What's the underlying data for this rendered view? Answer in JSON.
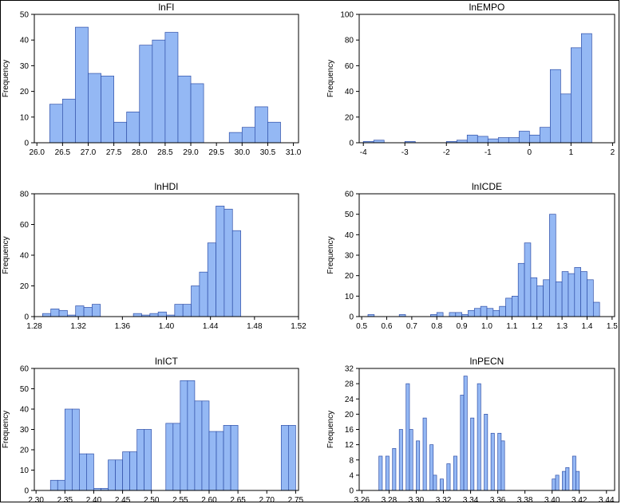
{
  "chart_data": [
    {
      "type": "bar",
      "title": "lnFI",
      "xlabel": "",
      "ylabel": "Frequency",
      "xlim": [
        25.95,
        31.1
      ],
      "ylim": [
        0,
        50
      ],
      "xticks": [
        26.0,
        26.5,
        27.0,
        27.5,
        28.0,
        28.5,
        29.0,
        29.5,
        30.0,
        30.5,
        31.0
      ],
      "xtick_labels": [
        "26.0",
        "26.5",
        "27.0",
        "27.5",
        "28.0",
        "28.5",
        "29.0",
        "29.5",
        "30.0",
        "30.5",
        "31.0"
      ],
      "yticks": [
        0,
        10,
        20,
        30,
        40,
        50
      ],
      "ytick_labels": [
        "0",
        "10",
        "20",
        "30",
        "40",
        "50"
      ],
      "bin_width": 0.25,
      "bin_starts": [
        26.25,
        26.5,
        26.75,
        27.0,
        27.25,
        27.5,
        27.75,
        28.0,
        28.25,
        28.5,
        28.75,
        29.0,
        29.25,
        29.5,
        29.75,
        30.0,
        30.25,
        30.5
      ],
      "values": [
        15,
        17,
        45,
        27,
        26,
        8,
        12,
        38,
        40,
        43,
        26,
        23,
        0,
        0,
        4,
        6,
        14,
        8
      ]
    },
    {
      "type": "bar",
      "title": "lnEMPO",
      "xlabel": "",
      "ylabel": "Frequency",
      "xlim": [
        -4.1,
        2.05
      ],
      "ylim": [
        0,
        100
      ],
      "xticks": [
        -4,
        -3,
        -2,
        -1,
        0,
        1,
        2
      ],
      "xtick_labels": [
        "-4",
        "-3",
        "-2",
        "-1",
        "0",
        "1",
        "2"
      ],
      "yticks": [
        0,
        20,
        40,
        60,
        80,
        100
      ],
      "ytick_labels": [
        "0",
        "20",
        "40",
        "60",
        "80",
        "100"
      ],
      "bin_width": 0.25,
      "bin_starts": [
        -4.0,
        -3.75,
        -3.5,
        -3.25,
        -3.0,
        -2.75,
        -2.5,
        -2.25,
        -2.0,
        -1.75,
        -1.5,
        -1.25,
        -1.0,
        -0.75,
        -0.5,
        -0.25,
        0.0,
        0.25,
        0.5,
        0.75,
        1.0,
        1.25
      ],
      "values": [
        1,
        2,
        0,
        0,
        1,
        0,
        0,
        0,
        1,
        2,
        6,
        5,
        3,
        4,
        4,
        9,
        6,
        12,
        57,
        38,
        74,
        85
      ]
    },
    {
      "type": "bar",
      "title": "lnHDI",
      "xlabel": "",
      "ylabel": "Frequency",
      "xlim": [
        1.28,
        1.52
      ],
      "ylim": [
        0,
        80
      ],
      "xticks": [
        1.28,
        1.32,
        1.36,
        1.4,
        1.44,
        1.48,
        1.52
      ],
      "xtick_labels": [
        "1.28",
        "1.32",
        "1.36",
        "1.40",
        "1.44",
        "1.48",
        "1.52"
      ],
      "yticks": [
        0,
        20,
        40,
        60,
        80
      ],
      "ytick_labels": [
        "0",
        "20",
        "40",
        "60",
        "80"
      ],
      "bin_width": 0.0075,
      "bin_starts": [
        1.2875,
        1.295,
        1.3025,
        1.31,
        1.3175,
        1.325,
        1.3325,
        1.34,
        1.3475,
        1.355,
        1.3625,
        1.37,
        1.3775,
        1.385,
        1.3925,
        1.4,
        1.4075,
        1.415,
        1.4225,
        1.43,
        1.4375,
        1.445,
        1.4525,
        1.46,
        1.4675,
        1.475,
        1.4825,
        1.49,
        1.4975
      ],
      "values": [
        2,
        5,
        4,
        1,
        7,
        6,
        8,
        0,
        0,
        0,
        0,
        2,
        1,
        2,
        3,
        1,
        8,
        8,
        20,
        29,
        48,
        72,
        70,
        56,
        0,
        0,
        0,
        0,
        0
      ]
    },
    {
      "type": "bar",
      "title": "lnICDE",
      "xlabel": "",
      "ylabel": "Frequency",
      "xlim": [
        0.49,
        1.51
      ],
      "ylim": [
        0,
        60
      ],
      "xticks": [
        0.5,
        0.6,
        0.7,
        0.8,
        0.9,
        1.0,
        1.1,
        1.2,
        1.3,
        1.4,
        1.5
      ],
      "xtick_labels": [
        "0.5",
        "0.6",
        "0.7",
        "0.8",
        "0.9",
        "1.0",
        "1.1",
        "1.2",
        "1.3",
        "1.4",
        "1.5"
      ],
      "yticks": [
        0,
        10,
        20,
        30,
        40,
        50,
        60
      ],
      "ytick_labels": [
        "0",
        "10",
        "20",
        "30",
        "40",
        "50",
        "60"
      ],
      "bin_width": 0.025,
      "bin_starts": [
        0.525,
        0.55,
        0.575,
        0.6,
        0.625,
        0.65,
        0.675,
        0.7,
        0.725,
        0.75,
        0.775,
        0.8,
        0.825,
        0.85,
        0.875,
        0.9,
        0.925,
        0.95,
        0.975,
        1.0,
        1.025,
        1.05,
        1.075,
        1.1,
        1.125,
        1.15,
        1.175,
        1.2,
        1.225,
        1.25,
        1.275,
        1.3,
        1.325,
        1.35,
        1.375,
        1.4,
        1.425
      ],
      "values": [
        1,
        0,
        0,
        0,
        0,
        1,
        0,
        0,
        0,
        0,
        1,
        2,
        0,
        2,
        2,
        1,
        3,
        4,
        5,
        4,
        3,
        5,
        9,
        10,
        26,
        36,
        19,
        15,
        18,
        50,
        17,
        22,
        21,
        24,
        22,
        18,
        7
      ]
    },
    {
      "type": "bar",
      "title": "lnICT",
      "xlabel": "",
      "ylabel": "Frequency",
      "xlim": [
        2.297,
        2.755
      ],
      "ylim": [
        0,
        60
      ],
      "xticks": [
        2.3,
        2.35,
        2.4,
        2.45,
        2.5,
        2.55,
        2.6,
        2.65,
        2.7,
        2.75
      ],
      "xtick_labels": [
        "2.30",
        "2.35",
        "2.40",
        "2.45",
        "2.50",
        "2.55",
        "2.60",
        "2.65",
        "2.70",
        "2.75"
      ],
      "yticks": [
        0,
        10,
        20,
        30,
        40,
        50,
        60
      ],
      "ytick_labels": [
        "0",
        "10",
        "20",
        "30",
        "40",
        "50",
        "60"
      ],
      "bin_width": 0.0125,
      "bin_starts": [
        2.325,
        2.3375,
        2.35,
        2.3625,
        2.375,
        2.3875,
        2.4,
        2.4125,
        2.425,
        2.4375,
        2.45,
        2.4625,
        2.475,
        2.4875,
        2.5,
        2.5125,
        2.525,
        2.5375,
        2.55,
        2.5625,
        2.575,
        2.5875,
        2.6,
        2.6125,
        2.625,
        2.6375,
        2.65,
        2.6625,
        2.675,
        2.6875,
        2.7,
        2.7125,
        2.725,
        2.7375
      ],
      "values": [
        5,
        5,
        40,
        40,
        18,
        18,
        1,
        1,
        15,
        15,
        19,
        19,
        30,
        30,
        0,
        0,
        33,
        33,
        54,
        54,
        44,
        44,
        29,
        29,
        32,
        32,
        0,
        0,
        0,
        0,
        0,
        0,
        32,
        32
      ]
    },
    {
      "type": "bar",
      "title": "lnPECN",
      "xlabel": "",
      "ylabel": "Frequency",
      "xlim": [
        3.258,
        3.446
      ],
      "ylim": [
        0,
        32
      ],
      "xticks": [
        3.26,
        3.28,
        3.3,
        3.32,
        3.34,
        3.36,
        3.38,
        3.4,
        3.42,
        3.44
      ],
      "xtick_labels": [
        "3.26",
        "3.28",
        "3.30",
        "3.32",
        "3.34",
        "3.36",
        "3.38",
        "3.40",
        "3.42",
        "3.44"
      ],
      "yticks": [
        0,
        4,
        8,
        12,
        16,
        20,
        24,
        28,
        32
      ],
      "ytick_labels": [
        "0",
        "4",
        "8",
        "12",
        "16",
        "20",
        "24",
        "28",
        "32"
      ],
      "bin_width": 0.0025,
      "bin_starts": [
        3.27,
        3.2725,
        3.275,
        3.2775,
        3.28,
        3.2825,
        3.285,
        3.2875,
        3.29,
        3.2925,
        3.295,
        3.2975,
        3.3,
        3.3025,
        3.305,
        3.3075,
        3.31,
        3.3125,
        3.315,
        3.3175,
        3.32,
        3.3225,
        3.325,
        3.3275,
        3.33,
        3.3325,
        3.335,
        3.3375,
        3.34,
        3.3425,
        3.345,
        3.3475,
        3.35,
        3.3525,
        3.355,
        3.3575,
        3.36,
        3.3625,
        3.365,
        3.3675,
        3.37,
        3.3725,
        3.375,
        3.3775,
        3.38,
        3.3825,
        3.385,
        3.3875,
        3.39,
        3.3925,
        3.395,
        3.3975,
        3.4,
        3.4025,
        3.405,
        3.4075,
        3.41,
        3.4125,
        3.415,
        3.4175,
        3.42
      ],
      "values": [
        0,
        9,
        0,
        9,
        0,
        11,
        0,
        16,
        0,
        28,
        16,
        0,
        13,
        0,
        19,
        0,
        12,
        4,
        0,
        3,
        0,
        7,
        0,
        9,
        0,
        25,
        30,
        0,
        19,
        0,
        28,
        0,
        20,
        0,
        15,
        0,
        15,
        13,
        0,
        0,
        0,
        0,
        0,
        0,
        0,
        0,
        0,
        0,
        0,
        0,
        0,
        0,
        3,
        4,
        0,
        5,
        6,
        0,
        9,
        5,
        0
      ]
    }
  ]
}
